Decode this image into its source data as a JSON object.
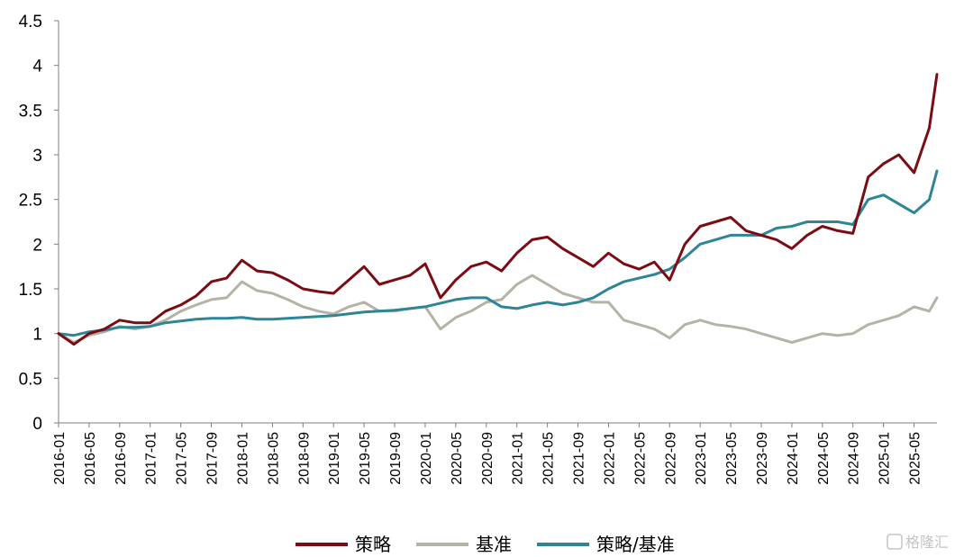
{
  "chart_data": {
    "type": "line",
    "ylim": [
      0,
      4.5
    ],
    "y_ticks": [
      "0",
      "0.5",
      "1",
      "1.5",
      "2",
      "2.5",
      "3",
      "3.5",
      "4",
      "4.5"
    ],
    "x_ticks": [
      "2016-01",
      "2016-05",
      "2016-09",
      "2017-01",
      "2017-05",
      "2017-09",
      "2018-01",
      "2018-05",
      "2018-09",
      "2019-01",
      "2019-05",
      "2019-09",
      "2020-01",
      "2020-05",
      "2020-09",
      "2021-01",
      "2021-05",
      "2021-09",
      "2022-01",
      "2022-05",
      "2022-09",
      "2023-01",
      "2023-05",
      "2023-09",
      "2024-01",
      "2024-05",
      "2024-09",
      "2025-01",
      "2025-05"
    ],
    "x": [
      "2016-01",
      "2016-03",
      "2016-05",
      "2016-07",
      "2016-09",
      "2016-11",
      "2017-01",
      "2017-03",
      "2017-05",
      "2017-07",
      "2017-09",
      "2017-11",
      "2018-01",
      "2018-03",
      "2018-05",
      "2018-07",
      "2018-09",
      "2018-11",
      "2019-01",
      "2019-03",
      "2019-05",
      "2019-07",
      "2019-09",
      "2019-11",
      "2020-01",
      "2020-03",
      "2020-05",
      "2020-07",
      "2020-09",
      "2020-11",
      "2021-01",
      "2021-03",
      "2021-05",
      "2021-07",
      "2021-09",
      "2021-11",
      "2022-01",
      "2022-03",
      "2022-05",
      "2022-07",
      "2022-09",
      "2022-11",
      "2023-01",
      "2023-03",
      "2023-05",
      "2023-07",
      "2023-09",
      "2023-11",
      "2024-01",
      "2024-03",
      "2024-05",
      "2024-07",
      "2024-09",
      "2024-11",
      "2025-01",
      "2025-03",
      "2025-05",
      "2025-07",
      "2025-08"
    ],
    "series": [
      {
        "name": "策略",
        "color": "#7b0c13",
        "values": [
          1.0,
          0.88,
          1.0,
          1.05,
          1.15,
          1.12,
          1.12,
          1.25,
          1.32,
          1.42,
          1.58,
          1.62,
          1.82,
          1.7,
          1.68,
          1.6,
          1.5,
          1.47,
          1.45,
          1.6,
          1.75,
          1.55,
          1.6,
          1.65,
          1.78,
          1.4,
          1.6,
          1.75,
          1.8,
          1.7,
          1.9,
          2.05,
          2.08,
          1.95,
          1.85,
          1.75,
          1.9,
          1.78,
          1.72,
          1.8,
          1.6,
          2.0,
          2.2,
          2.25,
          2.3,
          2.15,
          2.1,
          2.05,
          1.95,
          2.1,
          2.2,
          2.15,
          2.12,
          2.75,
          2.9,
          3.0,
          2.8,
          3.3,
          3.9
        ]
      },
      {
        "name": "基准",
        "color": "#b5b3a6",
        "values": [
          1.0,
          0.9,
          0.98,
          1.02,
          1.08,
          1.05,
          1.08,
          1.15,
          1.25,
          1.32,
          1.38,
          1.4,
          1.58,
          1.48,
          1.45,
          1.38,
          1.3,
          1.25,
          1.22,
          1.3,
          1.35,
          1.25,
          1.25,
          1.28,
          1.3,
          1.05,
          1.18,
          1.25,
          1.35,
          1.38,
          1.55,
          1.65,
          1.55,
          1.45,
          1.4,
          1.35,
          1.35,
          1.15,
          1.1,
          1.05,
          0.95,
          1.1,
          1.15,
          1.1,
          1.08,
          1.05,
          1.0,
          0.95,
          0.9,
          0.95,
          1.0,
          0.98,
          1.0,
          1.1,
          1.15,
          1.2,
          1.3,
          1.25,
          1.4
        ]
      },
      {
        "name": "策略/基准",
        "color": "#2d8595",
        "values": [
          1.0,
          0.98,
          1.02,
          1.04,
          1.07,
          1.07,
          1.08,
          1.12,
          1.14,
          1.16,
          1.17,
          1.17,
          1.18,
          1.16,
          1.16,
          1.17,
          1.18,
          1.19,
          1.2,
          1.22,
          1.24,
          1.25,
          1.26,
          1.28,
          1.3,
          1.34,
          1.38,
          1.4,
          1.4,
          1.3,
          1.28,
          1.32,
          1.35,
          1.32,
          1.35,
          1.4,
          1.5,
          1.58,
          1.62,
          1.66,
          1.72,
          1.85,
          2.0,
          2.05,
          2.1,
          2.1,
          2.1,
          2.18,
          2.2,
          2.25,
          2.25,
          2.25,
          2.22,
          2.5,
          2.55,
          2.45,
          2.35,
          2.5,
          2.82
        ]
      }
    ],
    "legend": {
      "position": "bottom",
      "items": [
        "策略",
        "基准",
        "策略/基准"
      ]
    },
    "grid": false
  },
  "watermark": {
    "text": "格隆汇"
  }
}
